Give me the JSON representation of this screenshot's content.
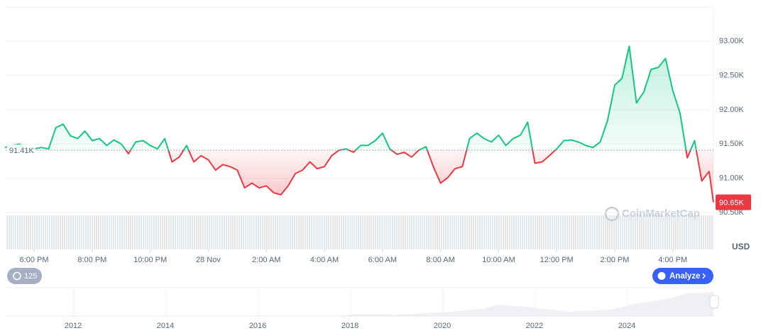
{
  "chart_data": {
    "type": "line",
    "x": [
      17,
      17.25,
      17.5,
      17.75,
      18,
      18.25,
      18.5,
      18.75,
      19,
      19.25,
      19.5,
      19.75,
      20,
      20.25,
      20.5,
      20.75,
      21,
      21.25,
      21.5,
      21.75,
      22,
      22.25,
      22.5,
      22.75,
      23,
      23.25,
      23.5,
      23.75,
      24,
      24.25,
      24.5,
      24.75,
      25,
      25.25,
      25.5,
      25.75,
      26,
      26.25,
      26.5,
      26.75,
      27,
      27.25,
      27.5,
      27.75,
      28,
      28.25,
      28.5,
      28.75,
      29,
      29.25,
      29.5,
      29.75,
      30,
      30.25,
      30.5,
      30.75,
      31,
      31.25,
      31.5,
      31.75,
      32,
      32.25,
      32.5,
      32.75,
      33,
      33.25,
      33.5,
      33.75,
      34,
      34.25,
      34.5,
      34.75,
      35,
      35.25,
      35.5,
      35.75,
      36,
      36.25,
      36.5,
      36.75,
      37,
      37.25,
      37.5,
      37.75,
      38,
      38.25,
      38.5,
      38.75,
      39,
      39.25,
      39.5,
      39.75,
      40,
      40.25,
      40.5,
      40.75,
      41,
      41.25,
      41.4
    ],
    "values": [
      91.45,
      91.48,
      91.5,
      91.41,
      91.43,
      91.45,
      91.43,
      91.74,
      91.79,
      91.62,
      91.58,
      91.69,
      91.55,
      91.58,
      91.48,
      91.56,
      91.5,
      91.36,
      91.53,
      91.55,
      91.48,
      91.43,
      91.58,
      91.24,
      91.31,
      91.48,
      91.24,
      91.33,
      91.27,
      91.12,
      91.2,
      91.17,
      91.12,
      90.86,
      90.93,
      90.86,
      90.89,
      90.79,
      90.76,
      90.89,
      91.07,
      91.12,
      91.24,
      91.14,
      91.17,
      91.33,
      91.41,
      91.43,
      91.38,
      91.48,
      91.48,
      91.55,
      91.66,
      91.43,
      91.35,
      91.38,
      91.31,
      91.41,
      91.46,
      91.17,
      90.93,
      91.01,
      91.14,
      91.17,
      91.58,
      91.66,
      91.58,
      91.53,
      91.63,
      91.48,
      91.58,
      91.63,
      91.82,
      91.22,
      91.24,
      91.33,
      91.43,
      91.55,
      91.56,
      91.53,
      91.48,
      91.45,
      91.53,
      91.84,
      92.36,
      92.46,
      92.93,
      92.1,
      92.26,
      92.59,
      92.62,
      92.75,
      92.28,
      91.95,
      91.3,
      91.55,
      90.96,
      91.1,
      90.65
    ],
    "up_color": "#16c784",
    "down_color": "#ea3943",
    "baseline": {
      "value": 91.41,
      "label": "91.41K"
    },
    "current_price": {
      "value": 90.65,
      "label": "90.65K"
    },
    "xlim": [
      17.02,
      41.4
    ],
    "xticks": [
      {
        "value": 18,
        "label": "6:00 PM"
      },
      {
        "value": 20,
        "label": "8:00 PM"
      },
      {
        "value": 22,
        "label": "10:00 PM"
      },
      {
        "value": 24,
        "label": "28 Nov"
      },
      {
        "value": 26,
        "label": "2:00 AM"
      },
      {
        "value": 28,
        "label": "4:00 AM"
      },
      {
        "value": 30,
        "label": "6:00 AM"
      },
      {
        "value": 32,
        "label": "8:00 AM"
      },
      {
        "value": 34,
        "label": "10:00 AM"
      },
      {
        "value": 36,
        "label": "12:00 PM"
      },
      {
        "value": 38,
        "label": "2:00 PM"
      },
      {
        "value": 40,
        "label": "4:00 PM"
      }
    ],
    "ylim": [
      90.5,
      93.5
    ],
    "yticks": [
      {
        "value": 90.5,
        "label": "90.50K"
      },
      {
        "value": 91,
        "label": "91.00K"
      },
      {
        "value": 91.5,
        "label": "91.50K"
      },
      {
        "value": 92,
        "label": "92.00K"
      },
      {
        "value": 92.5,
        "label": "92.50K"
      },
      {
        "value": 93,
        "label": "93.00K"
      }
    ],
    "y_unit": "USD",
    "grid": true,
    "watermark": "CoinMarketCap",
    "history_button": "125",
    "analyze_button": "Analyze",
    "navigator_labels": [
      "2012",
      "2014",
      "2016",
      "2018",
      "2020",
      "2022",
      "2024"
    ]
  }
}
